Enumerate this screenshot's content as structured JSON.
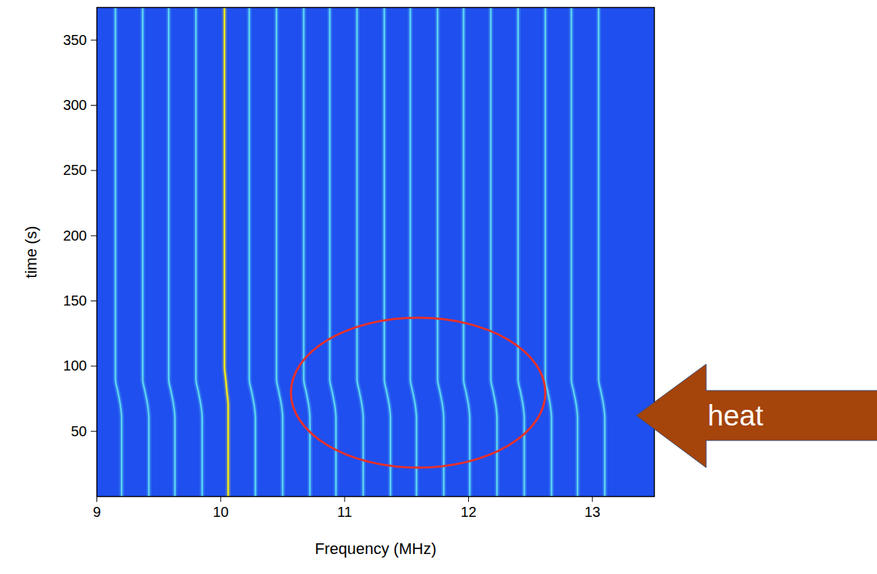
{
  "chart_data": {
    "type": "line",
    "x_label": "Frequency (MHz)",
    "y_label": "time (s)",
    "xlim": [
      9,
      13.5
    ],
    "xticks": [
      9,
      10,
      11,
      12,
      13
    ],
    "ylim": [
      0,
      375
    ],
    "yticks": [
      50,
      100,
      150,
      200,
      250,
      300,
      350
    ],
    "grid": false,
    "annotations": [
      {
        "text": "heat"
      }
    ],
    "y": [
      0,
      60,
      70,
      80,
      90,
      100,
      110,
      120,
      375
    ],
    "series": [
      {
        "color": "#5ad2f2",
        "values": [
          9.2,
          9.2,
          9.19,
          9.17,
          9.15,
          9.15,
          9.15,
          9.15,
          9.15
        ]
      },
      {
        "color": "#5ad2f2",
        "values": [
          9.42,
          9.42,
          9.41,
          9.39,
          9.37,
          9.37,
          9.37,
          9.37,
          9.37
        ]
      },
      {
        "color": "#5ad2f2",
        "values": [
          9.63,
          9.63,
          9.62,
          9.6,
          9.58,
          9.58,
          9.58,
          9.58,
          9.58
        ]
      },
      {
        "color": "#5ad2f2",
        "values": [
          9.85,
          9.85,
          9.84,
          9.82,
          9.8,
          9.8,
          9.8,
          9.8,
          9.8
        ]
      },
      {
        "color": "#f0e81e",
        "values": [
          10.06,
          10.06,
          10.06,
          10.05,
          10.04,
          10.03,
          10.03,
          10.03,
          10.03
        ]
      },
      {
        "color": "#5ad2f2",
        "values": [
          10.28,
          10.28,
          10.27,
          10.25,
          10.23,
          10.23,
          10.23,
          10.23,
          10.23
        ]
      },
      {
        "color": "#5ad2f2",
        "values": [
          10.5,
          10.5,
          10.49,
          10.47,
          10.45,
          10.45,
          10.45,
          10.45,
          10.45
        ]
      },
      {
        "color": "#5ad2f2",
        "values": [
          10.72,
          10.72,
          10.71,
          10.69,
          10.67,
          10.67,
          10.67,
          10.67,
          10.67
        ]
      },
      {
        "color": "#5ad2f2",
        "values": [
          10.93,
          10.93,
          10.92,
          10.9,
          10.88,
          10.88,
          10.88,
          10.88,
          10.88
        ]
      },
      {
        "color": "#5ad2f2",
        "values": [
          11.15,
          11.15,
          11.14,
          11.12,
          11.1,
          11.1,
          11.1,
          11.1,
          11.1
        ]
      },
      {
        "color": "#5ad2f2",
        "values": [
          11.37,
          11.37,
          11.36,
          11.34,
          11.32,
          11.32,
          11.32,
          11.32,
          11.32
        ]
      },
      {
        "color": "#5ad2f2",
        "values": [
          11.58,
          11.58,
          11.57,
          11.55,
          11.53,
          11.53,
          11.53,
          11.53,
          11.53
        ]
      },
      {
        "color": "#5ad2f2",
        "values": [
          11.8,
          11.8,
          11.79,
          11.77,
          11.75,
          11.75,
          11.75,
          11.75,
          11.75
        ]
      },
      {
        "color": "#5ad2f2",
        "values": [
          12.01,
          12.01,
          12.0,
          11.98,
          11.96,
          11.96,
          11.96,
          11.96,
          11.96
        ]
      },
      {
        "color": "#5ad2f2",
        "values": [
          12.23,
          12.23,
          12.22,
          12.2,
          12.18,
          12.18,
          12.18,
          12.18,
          12.18
        ]
      },
      {
        "color": "#5ad2f2",
        "values": [
          12.45,
          12.45,
          12.44,
          12.42,
          12.4,
          12.4,
          12.4,
          12.4,
          12.4
        ]
      },
      {
        "color": "#5ad2f2",
        "values": [
          12.67,
          12.67,
          12.66,
          12.64,
          12.62,
          12.62,
          12.62,
          12.62,
          12.62
        ]
      },
      {
        "color": "#5ad2f2",
        "values": [
          12.88,
          12.88,
          12.87,
          12.85,
          12.83,
          12.83,
          12.83,
          12.83,
          12.83
        ]
      },
      {
        "color": "#5ad2f2",
        "values": [
          13.1,
          13.1,
          13.09,
          13.07,
          13.05,
          13.05,
          13.05,
          13.05,
          13.05
        ]
      }
    ]
  }
}
